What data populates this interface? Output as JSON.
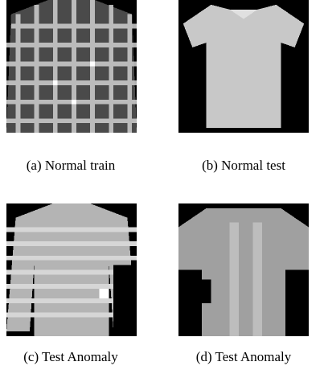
{
  "figure": {
    "panels": [
      {
        "caption": "(a) Normal train"
      },
      {
        "caption": "(b) Normal test"
      },
      {
        "caption": "(c) Test Anomaly"
      },
      {
        "caption": "(d) Test Anomaly"
      }
    ]
  }
}
